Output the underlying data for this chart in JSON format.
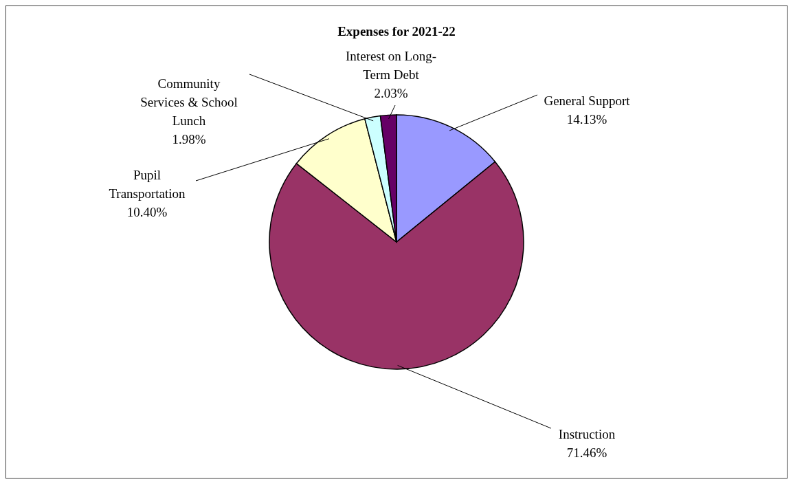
{
  "chart_data": {
    "type": "pie",
    "title": "Expenses for 2021-22",
    "categories": [
      "General Support",
      "Instruction",
      "Pupil Transportation",
      "Community Services & School Lunch",
      "Interest on Long-Term Debt"
    ],
    "values": [
      14.13,
      71.46,
      10.4,
      1.98,
      2.03
    ],
    "colors": [
      "#9999ff",
      "#993366",
      "#ffffcc",
      "#ccffff",
      "#660066"
    ],
    "value_labels": [
      "14.13%",
      "71.46%",
      "10.40%",
      "1.98%",
      "2.03%"
    ]
  }
}
